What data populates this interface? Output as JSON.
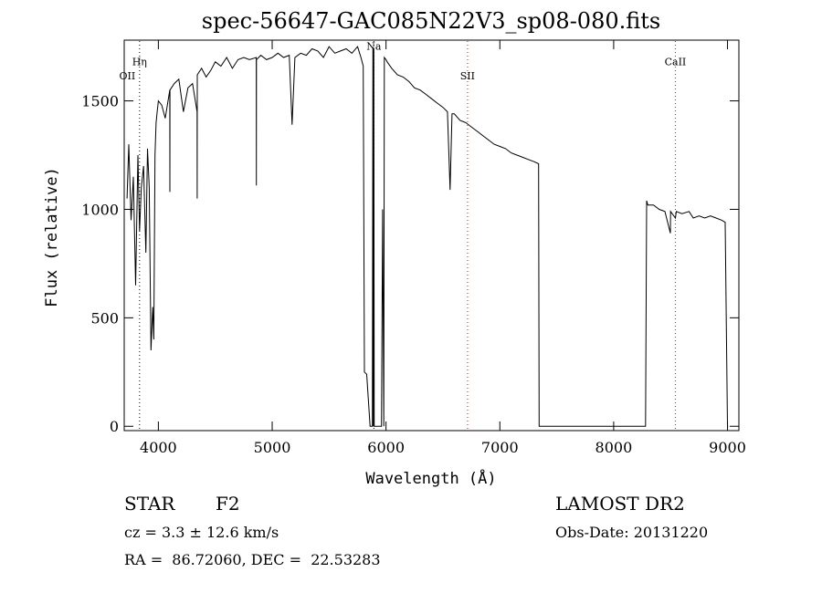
{
  "chart_data": {
    "type": "line",
    "title": "spec-56647-GAC085N22V3_sp08-080.fits",
    "xlabel": "Wavelength (Å)",
    "ylabel": "Flux (relative)",
    "xlim": [
      3700,
      9100
    ],
    "ylim": [
      -20,
      1780
    ],
    "xticks": [
      4000,
      5000,
      6000,
      7000,
      8000,
      9000
    ],
    "xtick_labels": [
      "4000",
      "5000",
      "6000",
      "7000",
      "8000",
      "9000"
    ],
    "yticks": [
      0,
      500,
      1000,
      1500
    ],
    "ytick_labels": [
      "0",
      "500",
      "1000",
      "1500"
    ],
    "grid": false,
    "line_color": "#000000",
    "marker_color": "#ff0000",
    "series": [
      {
        "x": [
          3725,
          3740,
          3760,
          3780,
          3800,
          3820,
          3835,
          3850,
          3870,
          3890,
          3905,
          3920,
          3935,
          3950,
          3960,
          3970,
          3980,
          3990,
          4000,
          4030,
          4060,
          4100,
          4101,
          4102,
          4140,
          4180,
          4220,
          4260,
          4300,
          4340,
          4341,
          4342,
          4380,
          4420,
          4460,
          4500,
          4550,
          4600,
          4650,
          4700,
          4750,
          4800,
          4860,
          4861,
          4862,
          4900,
          4950,
          5000,
          5050,
          5100,
          5150,
          5175,
          5200,
          5250,
          5300,
          5350,
          5400,
          5450,
          5500,
          5550,
          5600,
          5650,
          5700,
          5750,
          5780,
          5800,
          5810,
          5830,
          5860,
          5880,
          5885,
          5889,
          5893,
          5896,
          5900,
          5940,
          5960,
          5970,
          5980,
          5985,
          6000,
          6010,
          6050,
          6100,
          6150,
          6200,
          6250,
          6300,
          6350,
          6400,
          6450,
          6500,
          6540,
          6563,
          6580,
          6600,
          6650,
          6700,
          6750,
          6800,
          6850,
          6900,
          6950,
          7000,
          7050,
          7100,
          7150,
          7200,
          7250,
          7300,
          7340,
          7345,
          7350,
          7400,
          7500,
          7600,
          7700,
          7800,
          7900,
          8000,
          8100,
          8200,
          8280,
          8290,
          8300,
          8350,
          8400,
          8450,
          8498,
          8500,
          8542,
          8550,
          8600,
          8662,
          8700,
          8750,
          8800,
          8850,
          8900,
          8950,
          8980,
          9000,
          9005
        ],
        "y": [
          1050,
          1300,
          950,
          1150,
          650,
          1250,
          900,
          1100,
          1200,
          800,
          1280,
          1100,
          350,
          550,
          400,
          1250,
          1400,
          1450,
          1500,
          1480,
          1420,
          1550,
          1080,
          1550,
          1580,
          1600,
          1450,
          1560,
          1580,
          1450,
          1050,
          1620,
          1650,
          1610,
          1640,
          1680,
          1660,
          1700,
          1650,
          1690,
          1700,
          1690,
          1700,
          1110,
          1690,
          1710,
          1690,
          1700,
          1720,
          1700,
          1710,
          1390,
          1700,
          1720,
          1710,
          1740,
          1730,
          1700,
          1750,
          1720,
          1730,
          1740,
          1720,
          1750,
          1700,
          1660,
          250,
          240,
          0,
          0,
          1740,
          0,
          1740,
          0,
          0,
          0,
          0,
          1000,
          0,
          1700,
          1690,
          1680,
          1650,
          1620,
          1610,
          1590,
          1560,
          1550,
          1530,
          1510,
          1490,
          1470,
          1450,
          1090,
          1440,
          1440,
          1410,
          1400,
          1380,
          1360,
          1340,
          1320,
          1300,
          1290,
          1280,
          1260,
          1250,
          1240,
          1230,
          1220,
          1210,
          0,
          0,
          0,
          0,
          0,
          0,
          0,
          0,
          0,
          0,
          0,
          0,
          1040,
          1020,
          1020,
          1000,
          990,
          890,
          990,
          960,
          990,
          980,
          990,
          960,
          970,
          960,
          970,
          960,
          950,
          940,
          0,
          0
        ]
      }
    ],
    "annotations": [
      {
        "label": "OII",
        "x": 3727,
        "y": 1600
      },
      {
        "label": "Hη",
        "x": 3835,
        "y": 1665
      },
      {
        "label": "Na",
        "x": 5893,
        "y": 1735
      },
      {
        "label": "SII",
        "x": 6716,
        "y": 1600
      },
      {
        "label": "CaII",
        "x": 8542,
        "y": 1665
      }
    ],
    "line_markers": [
      {
        "x": 3835,
        "color": "#000000",
        "style": "dotted"
      },
      {
        "x": 5893,
        "color": "#000000",
        "style": "dotted"
      },
      {
        "x": 6716,
        "color": "#ff0000",
        "style": "dotted"
      },
      {
        "x": 8542,
        "color": "#ff0000",
        "style": "dotted"
      }
    ]
  },
  "info": {
    "class": "STAR",
    "subclass": "F2",
    "survey": "LAMOST DR2",
    "cz": "cz = 3.3 ± 12.6 km/s",
    "obs_date": "Obs-Date: 20131220",
    "coords": "RA =  86.72060, DEC =  22.53283"
  }
}
